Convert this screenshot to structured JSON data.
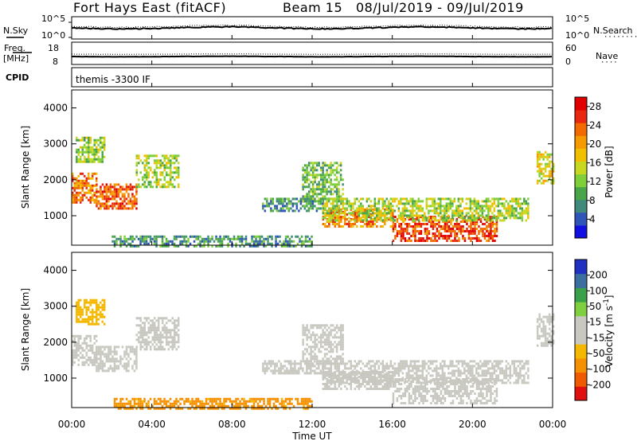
{
  "header": {
    "station": "Fort Hays East (fitACF)",
    "beam": "Beam 15",
    "date_range": "08/Jul/2019 - 09/Jul/2019"
  },
  "noise_panel": {
    "left_label": "N.Sky",
    "left_tick_top": "10^5",
    "left_tick_bottom": "10^0",
    "right_tick_top": "10^5",
    "right_tick_bottom": "10^0",
    "right_label": "N.Search"
  },
  "freq_panel": {
    "left_label_1": "Freq.",
    "left_label_2": "[MHz]",
    "left_tick_top": "18",
    "left_tick_bottom": "8",
    "right_tick_top": "60",
    "right_tick_bottom": "0",
    "right_label": "Nave"
  },
  "cpid_panel": {
    "label": "CPID",
    "value": "themis -3300 IF"
  },
  "colors": {
    "power_scale": [
      "#1010e0",
      "#2f55b8",
      "#3f8a7a",
      "#4aa54a",
      "#7fcf3a",
      "#c8d820",
      "#f0c000",
      "#f59a00",
      "#f26a00",
      "#e82810",
      "#e00000"
    ],
    "velocity_scale": [
      "#e01010",
      "#f05a00",
      "#f59000",
      "#f5b800",
      "#c8c8c0",
      "#c8c8c0",
      "#7fd040",
      "#3aa04a",
      "#3a6fa0",
      "#2030c0"
    ]
  },
  "chart_data": [
    {
      "type": "heatmap",
      "title": "",
      "ylabel": "Slant Range [km]",
      "xlabel": "",
      "x_ticks": [
        "00:00",
        "04:00",
        "08:00",
        "12:00",
        "16:00",
        "20:00",
        "00:00"
      ],
      "y_ticks": [
        "1000",
        "2000",
        "3000",
        "4000"
      ],
      "xlim_hours": [
        0,
        24
      ],
      "ylim": [
        180,
        4500
      ],
      "colorbar_label": "Power [dB]",
      "colorbar_ticks": [
        "4",
        "8",
        "12",
        "16",
        "20",
        "24",
        "28"
      ],
      "colorbar_range": [
        0,
        30
      ],
      "regions": [
        {
          "t0": 0.0,
          "t1": 1.2,
          "r0": 1400,
          "r1": 2200,
          "val": 22
        },
        {
          "t0": 1.2,
          "t1": 3.2,
          "r0": 1200,
          "r1": 1900,
          "val": 24
        },
        {
          "t0": 3.2,
          "t1": 5.3,
          "r0": 1800,
          "r1": 2700,
          "val": 14
        },
        {
          "t0": 0.2,
          "t1": 1.6,
          "r0": 2500,
          "r1": 3200,
          "val": 13
        },
        {
          "t0": 9.5,
          "t1": 12.5,
          "r0": 1150,
          "r1": 1500,
          "val": 8
        },
        {
          "t0": 11.5,
          "t1": 13.5,
          "r0": 1400,
          "r1": 2500,
          "val": 11
        },
        {
          "t0": 12.5,
          "t1": 16.0,
          "r0": 700,
          "r1": 1200,
          "val": 22
        },
        {
          "t0": 16.0,
          "t1": 21.2,
          "r0": 300,
          "r1": 1000,
          "val": 25
        },
        {
          "t0": 12.5,
          "t1": 22.8,
          "r0": 900,
          "r1": 1500,
          "val": 14
        },
        {
          "t0": 2.0,
          "t1": 12.0,
          "r0": 180,
          "r1": 450,
          "val": 8
        },
        {
          "t0": 23.2,
          "t1": 24.0,
          "r0": 1900,
          "r1": 2800,
          "val": 16
        }
      ]
    },
    {
      "type": "heatmap",
      "title": "",
      "ylabel": "Slant Range [km]",
      "xlabel": "Time UT",
      "x_ticks": [
        "00:00",
        "04:00",
        "08:00",
        "12:00",
        "16:00",
        "20:00",
        "00:00"
      ],
      "y_ticks": [
        "1000",
        "2000",
        "3000",
        "4000"
      ],
      "xlim_hours": [
        0,
        24
      ],
      "ylim": [
        180,
        4500
      ],
      "colorbar_label": "Velocity [m s^-1]",
      "colorbar_ticks": [
        "-200",
        "-100",
        "-50",
        "-15",
        "15",
        "50",
        "100",
        "200"
      ],
      "colorbar_range": [
        -250,
        250
      ],
      "regions": [
        {
          "t0": 0.0,
          "t1": 1.2,
          "r0": 1400,
          "r1": 2200,
          "val": 0
        },
        {
          "t0": 1.2,
          "t1": 3.2,
          "r0": 1200,
          "r1": 1900,
          "val": 0
        },
        {
          "t0": 3.2,
          "t1": 5.3,
          "r0": 1800,
          "r1": 2700,
          "val": 0
        },
        {
          "t0": 0.2,
          "t1": 1.6,
          "r0": 2500,
          "r1": 3200,
          "val": -30
        },
        {
          "t0": 9.5,
          "t1": 12.5,
          "r0": 1150,
          "r1": 1500,
          "val": 0
        },
        {
          "t0": 11.5,
          "t1": 13.5,
          "r0": 1400,
          "r1": 2500,
          "val": 0
        },
        {
          "t0": 12.5,
          "t1": 16.0,
          "r0": 700,
          "r1": 1200,
          "val": 0
        },
        {
          "t0": 16.0,
          "t1": 21.2,
          "r0": 300,
          "r1": 1000,
          "val": 0
        },
        {
          "t0": 12.5,
          "t1": 22.8,
          "r0": 900,
          "r1": 1500,
          "val": 0
        },
        {
          "t0": 2.0,
          "t1": 12.0,
          "r0": 180,
          "r1": 450,
          "val": -60
        },
        {
          "t0": 23.2,
          "t1": 24.0,
          "r0": 1900,
          "r1": 2800,
          "val": 0
        }
      ]
    }
  ]
}
